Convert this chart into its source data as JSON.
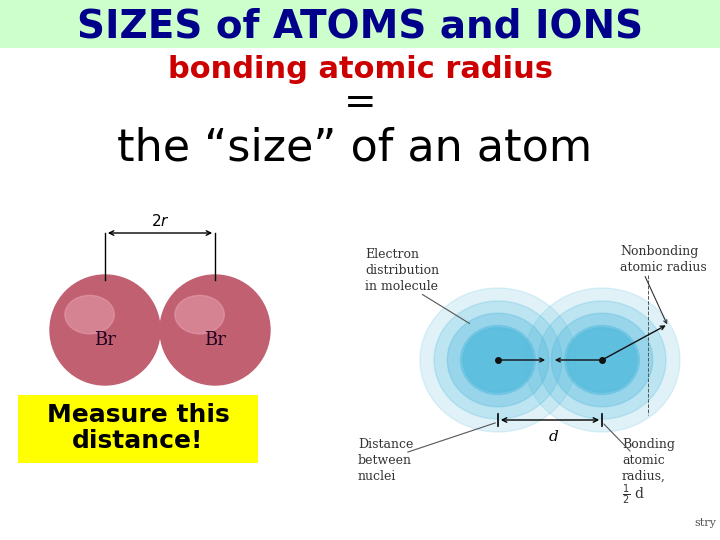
{
  "title": "SIZES of ATOMS and IONS",
  "title_color": "#00008B",
  "title_bg_color": "#ccffcc",
  "subtitle": "bonding atomic radius",
  "subtitle_color": "#cc0000",
  "equals": "=",
  "main_text": "the “size” of an atom",
  "left_label1": "Measure this",
  "left_label2": "distance!",
  "label_bg": "#ffff00",
  "br_color": "#c06070",
  "blue_blob_color": "#55bbdd",
  "corner_text": "stry",
  "bg_color": "#ffffff",
  "title_fontsize": 28,
  "subtitle_fontsize": 22,
  "equals_fontsize": 28,
  "main_fontsize": 32,
  "measure_fontsize": 18,
  "annotation_fontsize": 9,
  "br_fontsize": 13,
  "twor_fontsize": 11
}
